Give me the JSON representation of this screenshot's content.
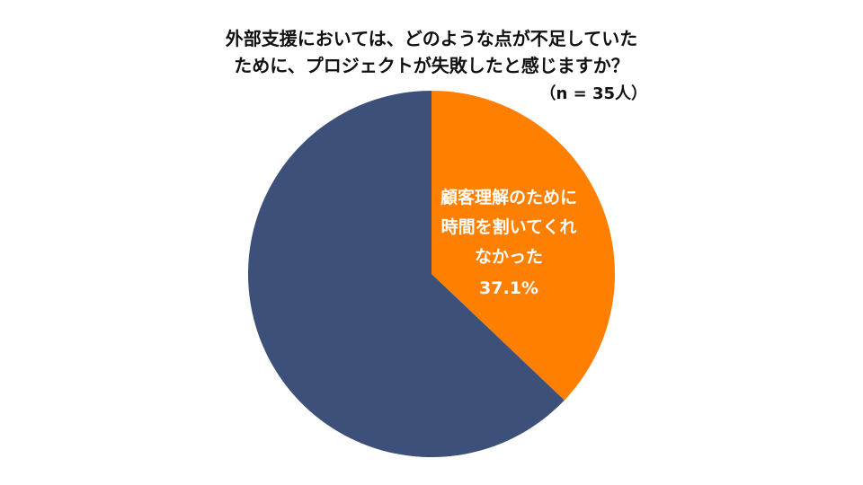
{
  "chart_data": {
    "type": "pie",
    "title_lines": [
      "外部支援においては、どのような点が不足していた",
      "ために、プロジェクトが失敗したと感じますか？"
    ],
    "sample_size": "（n = 35人）",
    "slices": [
      {
        "label_lines": [
          "顧客理解のために",
          "時間を割いてくれ",
          "なかった"
        ],
        "value_label": "37.1%",
        "value": 37.1,
        "color": "#FF8000"
      },
      {
        "label_lines": [],
        "value_label": "",
        "value": 62.9,
        "color": "#3D507A"
      }
    ],
    "start_angle": "12 o'clock",
    "direction": "clockwise"
  }
}
